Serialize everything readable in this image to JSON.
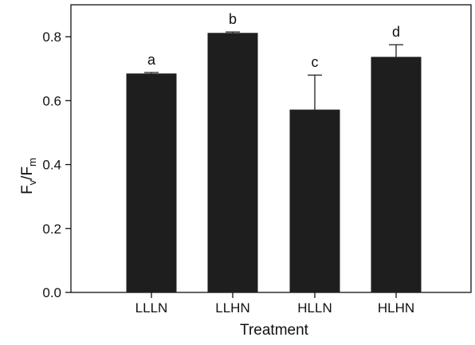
{
  "chart_data": {
    "type": "bar",
    "categories": [
      "LLLN",
      "LLHN",
      "HLLN",
      "HLHN"
    ],
    "values": [
      0.685,
      0.812,
      0.572,
      0.737
    ],
    "errors": [
      0.003,
      0.003,
      0.108,
      0.038
    ],
    "significance_labels": [
      "a",
      "b",
      "c",
      "d"
    ],
    "xlabel": "Treatment",
    "ylabel": {
      "main": "F",
      "sub1": "v",
      "sep": "/F",
      "sub2": "m"
    },
    "ylim": [
      0,
      0.9
    ],
    "yticks": [
      "0.0",
      "0.2",
      "0.4",
      "0.6",
      "0.8"
    ],
    "ytick_values": [
      0,
      0.2,
      0.4,
      0.6,
      0.8
    ],
    "grid": false,
    "legend": "none",
    "bar_color": "#1e1e1e",
    "axis_color": "#111111"
  }
}
